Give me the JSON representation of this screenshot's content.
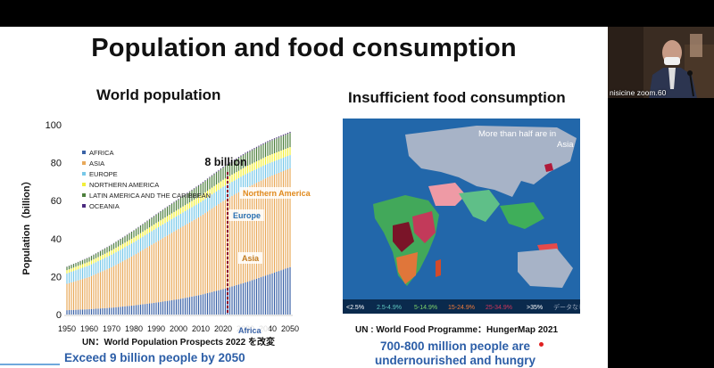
{
  "slide": {
    "title": "Population and food consumption",
    "left_subtitle": "World population",
    "right_subtitle": "Insufficient food consumption",
    "chart_source": "UN：World Population Prospects 2022 を改変",
    "left_takeaway": "Exceed 9 billion people by 2050",
    "map_caption": "UN : World Food Programme：HungerMap 2021",
    "right_takeaway_line1": "700-800 million people are",
    "right_takeaway_line2": "undernourished and hungry"
  },
  "chart_data": {
    "type": "area",
    "title": "World population",
    "ylabel": "Population（billion）",
    "xlabel": "",
    "ylim": [
      0,
      100
    ],
    "xlim": [
      1950,
      2050
    ],
    "x_ticks": [
      "1950",
      "1960",
      "1970",
      "1980",
      "1990",
      "2000",
      "2010",
      "2020",
      "2030",
      "2040",
      "2050"
    ],
    "y_ticks": [
      "0",
      "20",
      "40",
      "60",
      "80",
      "100"
    ],
    "x": [
      1950,
      1960,
      1970,
      1980,
      1990,
      2000,
      2010,
      2020,
      2030,
      2040,
      2050
    ],
    "series": [
      {
        "name": "AFRICA",
        "color": "#3a62a6",
        "values": [
          2.3,
          2.8,
          3.6,
          4.8,
          6.3,
          8.1,
          10.4,
          13.4,
          16.9,
          20.9,
          25.0
        ]
      },
      {
        "name": "ASIA",
        "color": "#e8a95a",
        "values": [
          13.9,
          17.0,
          21.3,
          26.4,
          31.9,
          37.0,
          41.5,
          46.4,
          49.6,
          51.4,
          52.0
        ]
      },
      {
        "name": "EUROPE",
        "color": "#77c8e8",
        "values": [
          5.5,
          6.1,
          6.6,
          6.9,
          7.2,
          7.3,
          7.4,
          7.5,
          7.4,
          7.2,
          7.0
        ]
      },
      {
        "name": "NORTHERN AMERICA",
        "color": "#f2ef3a",
        "values": [
          1.7,
          2.0,
          2.3,
          2.5,
          2.8,
          3.1,
          3.4,
          3.7,
          3.9,
          4.1,
          4.2
        ]
      },
      {
        "name": "LATIN AMERICA AND THE CARIBBEAN",
        "color": "#4d7f3c",
        "values": [
          1.7,
          2.2,
          2.9,
          3.6,
          4.4,
          5.2,
          5.9,
          6.5,
          7.0,
          7.3,
          7.5
        ]
      },
      {
        "name": "OCEANIA",
        "color": "#4b2a7f",
        "values": [
          0.13,
          0.16,
          0.2,
          0.23,
          0.27,
          0.31,
          0.37,
          0.43,
          0.48,
          0.53,
          0.57
        ]
      }
    ],
    "annotations": {
      "marker_year": 2022,
      "marker_label": "8 billion",
      "region_labels": [
        {
          "text": "Northern America",
          "color": "#e08a1e"
        },
        {
          "text": "Europe",
          "color": "#2a6fb0"
        },
        {
          "text": "Asia",
          "color": "#c07a1e"
        },
        {
          "text": "Africa",
          "color": "#3a62a6"
        }
      ]
    }
  },
  "map": {
    "title_line1": "More than half are in",
    "title_line2": "Asia",
    "legend": [
      {
        "label": "<2.5%",
        "color": "#ffffff",
        "text_color": "#ffffff"
      },
      {
        "label": "2.5-4.9%",
        "color": "#5fc7c0",
        "text_color": "#5fc7c0"
      },
      {
        "label": "5-14.9%",
        "color": "#7fd46a",
        "text_color": "#7fd46a"
      },
      {
        "label": "15-24.9%",
        "color": "#f07a3a",
        "text_color": "#f07a3a"
      },
      {
        "label": "25-34.9%",
        "color": "#d0355a",
        "text_color": "#d0355a"
      },
      {
        "label": ">35%",
        "color": "#ffffff",
        "text_color": "#ffffff"
      },
      {
        "label": "データなし",
        "color": "#9aa8bd",
        "text_color": "#9aa8bd"
      }
    ]
  },
  "video": {
    "participant_name": "nisicine zoom.60"
  }
}
